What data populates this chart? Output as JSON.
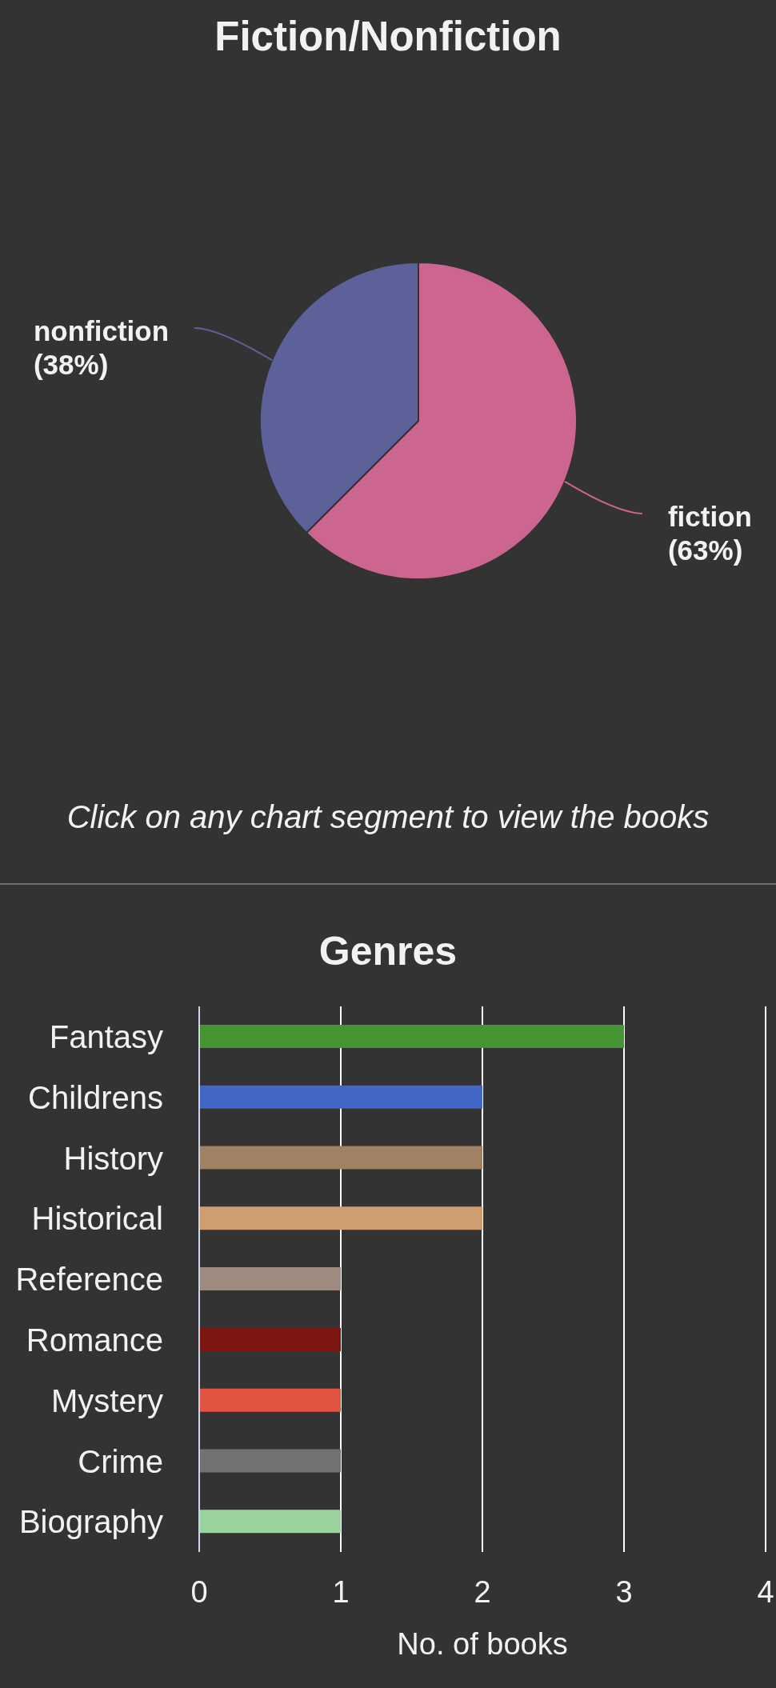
{
  "chart_data": [
    {
      "type": "pie",
      "title": "Fiction/Nonfiction",
      "categories": [
        "fiction",
        "nonfiction"
      ],
      "values": [
        62.5,
        37.5
      ],
      "colors": [
        "#cc6690",
        "#5c6299"
      ],
      "value_labels": [
        "(63%)",
        "(38%)"
      ],
      "annotations": [
        "Click on any chart segment to view the books"
      ]
    },
    {
      "type": "bar",
      "orientation": "horizontal",
      "title": "Genres",
      "categories": [
        "Fantasy",
        "Childrens",
        "History",
        "Historical",
        "Reference",
        "Romance",
        "Mystery",
        "Crime",
        "Biography"
      ],
      "values": [
        3,
        2,
        2,
        2,
        1,
        1,
        1,
        1,
        1
      ],
      "colors": [
        "#469432",
        "#4166c6",
        "#a08163",
        "#cf9e70",
        "#9e8b80",
        "#7b1610",
        "#e05441",
        "#727272",
        "#9bd39d"
      ],
      "xlim": [
        0,
        4
      ],
      "xticks": [
        0,
        1,
        2,
        3,
        4
      ],
      "xlabel": "No. of books",
      "grid": "x"
    }
  ]
}
